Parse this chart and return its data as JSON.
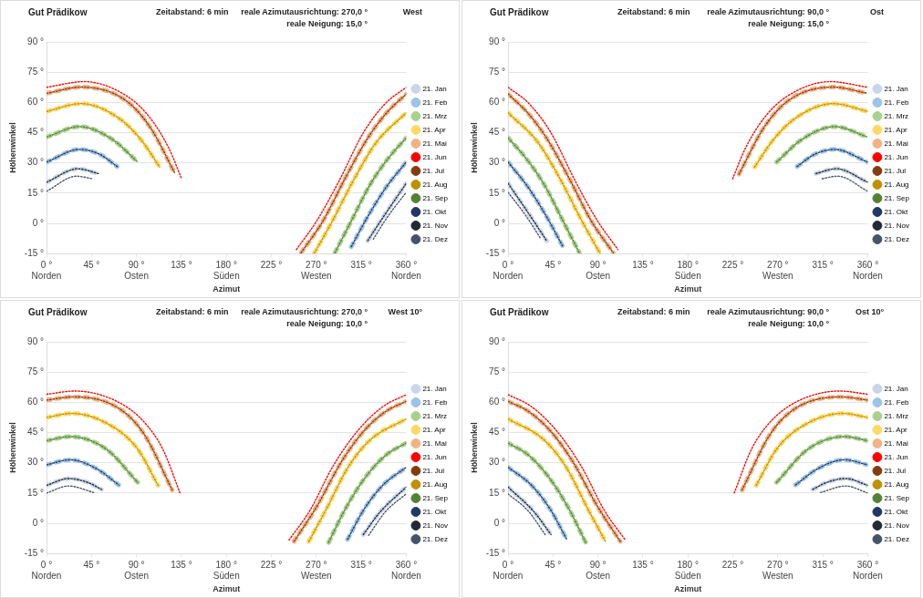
{
  "chart_data": [
    {
      "type": "line",
      "title": "Gut Prädikow",
      "annotations": [
        "Zeitabstand: 6 min",
        "reale Azimutausrichtung: 270,0 °",
        "West",
        "reale Neigung: 15,0 °"
      ],
      "xlabel": "Azimut",
      "ylabel": "Höhenwinkel",
      "xlim": [
        0,
        360
      ],
      "xticks": [
        {
          "value": 0,
          "label": "0 °\nNorden"
        },
        {
          "value": 45,
          "label": "45 °"
        },
        {
          "value": 90,
          "label": "90 °\nOsten"
        },
        {
          "value": 135,
          "label": "135 °"
        },
        {
          "value": 180,
          "label": "180 °\nSüden"
        },
        {
          "value": 225,
          "label": "225 °"
        },
        {
          "value": 270,
          "label": "270 °\nWesten"
        },
        {
          "value": 315,
          "label": "315 °"
        },
        {
          "value": 360,
          "label": "360 °\nNorden"
        }
      ],
      "ylim": [
        -15,
        90
      ],
      "yticks": [
        {
          "value": -15,
          "label": "-15 °"
        },
        {
          "value": 0,
          "label": "0 °"
        },
        {
          "value": 15,
          "label": "15 °"
        },
        {
          "value": 30,
          "label": "30 °"
        },
        {
          "value": 45,
          "label": "45 °"
        },
        {
          "value": 60,
          "label": "60 °"
        },
        {
          "value": 75,
          "label": "75 °"
        },
        {
          "value": 90,
          "label": "90 °"
        }
      ],
      "grid": "y",
      "legend": "right",
      "line_style": "dotted",
      "series": [
        {
          "name": "21. Jan",
          "color": "#c9d6ea",
          "x": [
            0,
            31.4,
            51.9,
            180,
            321.4,
            336.4,
            360
          ],
          "values": [
            20.4,
            27.1,
            24.7,
            null,
            -8.6,
            2.7,
            19.9
          ]
        },
        {
          "name": "21. Feb",
          "color": "#9dc3e6",
          "x": [
            0,
            33,
            53.4,
            70.7,
            180,
            305,
            320.7,
            339.6,
            360
          ],
          "values": [
            30.4,
            36.7,
            34.2,
            28.2,
            null,
            -11.6,
            2.7,
            17.7,
            30.4
          ]
        },
        {
          "name": "21. Mrz",
          "color": "#a9d18e",
          "x": [
            0,
            33,
            66,
            91.2,
            180,
            288.6,
            305,
            323.8,
            342.7,
            360
          ],
          "values": [
            42.8,
            48,
            41.6,
            30.4,
            null,
            -14.6,
            1.2,
            19.2,
            32.7,
            42.4
          ]
        },
        {
          "name": "21. Apr",
          "color": "#ffd966",
          "x": [
            0,
            34.6,
            72.3,
            94.3,
            113.2,
            180,
            267.9,
            286.1,
            308.1,
            330.1,
            360
          ],
          "values": [
            55.5,
            59.4,
            52.2,
            41.6,
            28,
            null,
            -14.9,
            1.2,
            22.2,
            40.2,
            54.9
          ]
        },
        {
          "name": "21. Mai",
          "color": "#f4b183",
          "x": [
            0,
            34.6,
            78.6,
            103.8,
            128.9,
            180,
            254.7,
            276.7,
            298.7,
            320.7,
            339.6,
            360
          ],
          "values": [
            64.5,
            67.6,
            61.2,
            47.6,
            24.4,
            null,
            -14.6,
            1.2,
            22.2,
            41.7,
            54.4,
            64.2
          ]
        },
        {
          "name": "21. Jun",
          "color": "#ff0000",
          "x": [
            0,
            37.7,
            81.7,
            103.8,
            122.6,
            135.2,
            180,
            250,
            270.4,
            292.4,
            317.6,
            339.6,
            360
          ],
          "values": [
            67.5,
            70.3,
            62.7,
            52.2,
            37.1,
            22.1,
            null,
            -13,
            1.2,
            20.7,
            45.4,
            59.7,
            67.5
          ]
        },
        {
          "name": "21. Jul",
          "color": "#843c0c",
          "x": [
            0,
            34.6,
            78.6,
            103.8,
            128.9,
            180,
            254.7,
            276.7,
            298.7,
            320.7,
            339.6,
            360
          ],
          "values": [
            64.5,
            67.6,
            61.2,
            47.6,
            24.4,
            null,
            -14.6,
            1.2,
            22.2,
            41.7,
            54.4,
            64.2
          ]
        },
        {
          "name": "21. Aug",
          "color": "#bf9000",
          "x": [
            0,
            34.6,
            72.3,
            94.3,
            113.2,
            180,
            267.9,
            286.1,
            308.1,
            330.1,
            360
          ],
          "values": [
            55.5,
            59.4,
            52.2,
            41.6,
            28,
            null,
            -14.9,
            1.2,
            22.2,
            40.2,
            54.9
          ]
        },
        {
          "name": "21. Sep",
          "color": "#548235",
          "x": [
            0,
            33,
            66,
            91.2,
            180,
            288.6,
            305,
            323.8,
            342.7,
            360
          ],
          "values": [
            42.8,
            48,
            41.6,
            30.4,
            null,
            -14.6,
            1.2,
            19.2,
            32.7,
            42.4
          ]
        },
        {
          "name": "21. Okt",
          "color": "#1f3864",
          "x": [
            0,
            33,
            53.4,
            70.7,
            180,
            305,
            320.7,
            339.6,
            360
          ],
          "values": [
            30.4,
            36.7,
            34.2,
            28.2,
            null,
            -11.6,
            2.7,
            17.7,
            30.4
          ]
        },
        {
          "name": "21. Nov",
          "color": "#222a35",
          "x": [
            0,
            31.4,
            51.9,
            180,
            321.4,
            336.4,
            360
          ],
          "values": [
            20.4,
            27.1,
            24.7,
            null,
            -8.6,
            2.7,
            19.9
          ]
        },
        {
          "name": "21. Dez",
          "color": "#44546a",
          "x": [
            0,
            29.9,
            45.6,
            180,
            327,
            342.7,
            360
          ],
          "values": [
            15.9,
            23.4,
            22.2,
            null,
            -7.8,
            4.2,
            15.4
          ]
        }
      ]
    },
    {
      "type": "line",
      "title": "Gut Prädikow",
      "annotations": [
        "Zeitabstand: 6 min",
        "reale Azimutausrichtung: 90,0 °",
        "Ost",
        "reale Neigung: 15,0 °"
      ],
      "xlabel": "Azimut",
      "ylabel": "Höhenwinkel",
      "xlim": [
        0,
        360
      ],
      "xticks": [
        {
          "value": 0,
          "label": "0 °\nNorden"
        },
        {
          "value": 45,
          "label": "45 °"
        },
        {
          "value": 90,
          "label": "90 °\nOsten"
        },
        {
          "value": 135,
          "label": "135 °"
        },
        {
          "value": 180,
          "label": "180 °\nSüden"
        },
        {
          "value": 225,
          "label": "225 °"
        },
        {
          "value": 270,
          "label": "270 °\nWesten"
        },
        {
          "value": 315,
          "label": "315 °"
        },
        {
          "value": 360,
          "label": "360 °\nNorden"
        }
      ],
      "ylim": [
        -15,
        90
      ],
      "yticks": [
        {
          "value": -15,
          "label": "-15 °"
        },
        {
          "value": 0,
          "label": "0 °"
        },
        {
          "value": 15,
          "label": "15 °"
        },
        {
          "value": 30,
          "label": "30 °"
        },
        {
          "value": 45,
          "label": "45 °"
        },
        {
          "value": 60,
          "label": "60 °"
        },
        {
          "value": 75,
          "label": "75 °"
        },
        {
          "value": 90,
          "label": "90 °"
        }
      ],
      "grid": "y",
      "legend": "right",
      "line_style": "dotted",
      "series": [
        {
          "name": "21. Jan",
          "color": "#c9d6ea",
          "x": [
            0,
            23.6,
            38.6,
            180,
            308.1,
            328.6,
            360
          ],
          "values": [
            19.9,
            2.7,
            -8.6,
            null,
            24.7,
            27.1,
            20.4
          ]
        },
        {
          "name": "21. Feb",
          "color": "#9dc3e6",
          "x": [
            0,
            20.4,
            39.3,
            55,
            180,
            289.3,
            306.6,
            327,
            360
          ],
          "values": [
            30.4,
            17.7,
            2.7,
            -11.6,
            null,
            28.2,
            34.2,
            36.7,
            30.4
          ]
        },
        {
          "name": "21. Mrz",
          "color": "#a9d18e",
          "x": [
            0,
            17.3,
            36.2,
            55,
            71.4,
            180,
            268.8,
            294,
            327,
            360
          ],
          "values": [
            42.4,
            32.7,
            19.2,
            1.2,
            -14.6,
            null,
            30.4,
            41.6,
            48,
            42.8
          ]
        },
        {
          "name": "21. Apr",
          "color": "#ffd966",
          "x": [
            0,
            29.9,
            51.9,
            73.9,
            92.1,
            180,
            246.8,
            265.7,
            287.7,
            325.4,
            360
          ],
          "values": [
            54.9,
            40.2,
            22.2,
            1.2,
            -14.9,
            null,
            28,
            41.6,
            52.2,
            59.4,
            55.5
          ]
        },
        {
          "name": "21. Mai",
          "color": "#f4b183",
          "x": [
            0,
            20.4,
            39.3,
            61.3,
            83.3,
            105.3,
            180,
            231.1,
            256.2,
            281.4,
            325.4,
            360
          ],
          "values": [
            64.2,
            54.4,
            41.7,
            22.2,
            1.2,
            -14.6,
            null,
            24.4,
            47.6,
            61.2,
            67.6,
            64.5
          ]
        },
        {
          "name": "21. Jun",
          "color": "#ff0000",
          "x": [
            0,
            20.4,
            42.4,
            67.6,
            89.6,
            110,
            180,
            224.8,
            237.4,
            256.2,
            278.3,
            322.3,
            360
          ],
          "values": [
            67.5,
            59.7,
            45.4,
            20.7,
            1.2,
            -13,
            null,
            22.1,
            37.1,
            52.2,
            62.7,
            70.3,
            67.5
          ]
        },
        {
          "name": "21. Jul",
          "color": "#843c0c",
          "x": [
            0,
            20.4,
            39.3,
            61.3,
            83.3,
            105.3,
            180,
            231.1,
            256.2,
            281.4,
            325.4,
            360
          ],
          "values": [
            64.2,
            54.4,
            41.7,
            22.2,
            1.2,
            -14.6,
            null,
            24.4,
            47.6,
            61.2,
            67.6,
            64.5
          ]
        },
        {
          "name": "21. Aug",
          "color": "#bf9000",
          "x": [
            0,
            29.9,
            51.9,
            73.9,
            92.1,
            180,
            246.8,
            265.7,
            287.7,
            325.4,
            360
          ],
          "values": [
            54.9,
            40.2,
            22.2,
            1.2,
            -14.9,
            null,
            28,
            41.6,
            52.2,
            59.4,
            55.5
          ]
        },
        {
          "name": "21. Sep",
          "color": "#548235",
          "x": [
            0,
            17.3,
            36.2,
            55,
            71.4,
            180,
            268.8,
            294,
            327,
            360
          ],
          "values": [
            42.4,
            32.7,
            19.2,
            1.2,
            -14.6,
            null,
            30.4,
            41.6,
            48,
            42.8
          ]
        },
        {
          "name": "21. Okt",
          "color": "#1f3864",
          "x": [
            0,
            20.4,
            39.3,
            55,
            180,
            289.3,
            306.6,
            327,
            360
          ],
          "values": [
            30.4,
            17.7,
            2.7,
            -11.6,
            null,
            28.2,
            34.2,
            36.7,
            30.4
          ]
        },
        {
          "name": "21. Nov",
          "color": "#222a35",
          "x": [
            0,
            23.6,
            38.6,
            180,
            308.1,
            328.6,
            360
          ],
          "values": [
            19.9,
            2.7,
            -8.6,
            null,
            24.7,
            27.1,
            20.4
          ]
        },
        {
          "name": "21. Dez",
          "color": "#44546a",
          "x": [
            0,
            17.3,
            33,
            180,
            314.4,
            330.1,
            360
          ],
          "values": [
            15.4,
            4.2,
            -7.8,
            null,
            22.2,
            23.4,
            15.9
          ]
        }
      ]
    },
    {
      "type": "line",
      "title": "Gut Prädikow",
      "annotations": [
        "Zeitabstand: 6 min",
        "reale Azimutausrichtung: 270,0 °",
        "West 10°",
        "reale Neigung: 10,0 °"
      ],
      "xlabel": "Azimut",
      "ylabel": "Höhenwinkel",
      "xlim": [
        0,
        360
      ],
      "xticks": [
        {
          "value": 0,
          "label": "0 °\nNorden"
        },
        {
          "value": 45,
          "label": "45 °"
        },
        {
          "value": 90,
          "label": "90 °\nOsten"
        },
        {
          "value": 135,
          "label": "135 °"
        },
        {
          "value": 180,
          "label": "180 °\nSüden"
        },
        {
          "value": 225,
          "label": "225 °"
        },
        {
          "value": 270,
          "label": "270 °\nWesten"
        },
        {
          "value": 315,
          "label": "315 °"
        },
        {
          "value": 360,
          "label": "360 °\nNorden"
        }
      ],
      "ylim": [
        -15,
        90
      ],
      "yticks": [
        {
          "value": -15,
          "label": "-15 °"
        },
        {
          "value": 0,
          "label": "0 °"
        },
        {
          "value": 15,
          "label": "15 °"
        },
        {
          "value": 30,
          "label": "30 °"
        },
        {
          "value": 45,
          "label": "45 °"
        },
        {
          "value": 60,
          "label": "60 °"
        },
        {
          "value": 75,
          "label": "75 °"
        },
        {
          "value": 90,
          "label": "90 °"
        }
      ],
      "grid": "y",
      "legend": "right",
      "line_style": "dotted",
      "series": [
        {
          "name": "21. Jan",
          "color": "#c9d6ea",
          "x": [
            0,
            22,
            40.9,
            55,
            180,
            317,
            333.3,
            360
          ],
          "values": [
            18.8,
            22.2,
            20.3,
            16.8,
            null,
            -5.6,
            5.3,
            18
          ]
        },
        {
          "name": "21. Feb",
          "color": "#9dc3e6",
          "x": [
            0,
            23.6,
            50.3,
            72.3,
            180,
            301.2,
            317.6,
            336.4,
            360
          ],
          "values": [
            29,
            31.5,
            27,
            19,
            null,
            -8,
            6.8,
            18.8,
            27.8
          ]
        },
        {
          "name": "21. Mrz",
          "color": "#a9d18e",
          "x": [
            0,
            23.6,
            59.7,
            91.2,
            180,
            282.3,
            298.7,
            317.6,
            339.6,
            360
          ],
          "values": [
            41,
            43,
            36.8,
            20.3,
            null,
            -9.5,
            6.8,
            21.8,
            33.8,
            39.8
          ]
        },
        {
          "name": "21. Apr",
          "color": "#ffd966",
          "x": [
            0,
            25.2,
            66,
            91.2,
            111.6,
            180,
            262.5,
            279.8,
            301.8,
            323.8,
            360
          ],
          "values": [
            52.5,
            54.5,
            48,
            36.8,
            18.8,
            null,
            -9,
            6.8,
            27.8,
            41.3,
            51.8
          ]
        },
        {
          "name": "21. Mai",
          "color": "#f4b183",
          "x": [
            0,
            26.7,
            72.3,
            97.5,
            125.8,
            180,
            247.7,
            270.4,
            295.5,
            317.6,
            339.6,
            360
          ],
          "values": [
            61.1,
            62.7,
            57,
            44.3,
            16.5,
            null,
            -9,
            8.3,
            30.8,
            45.8,
            55.5,
            60.5
          ]
        },
        {
          "name": "21. Jun",
          "color": "#ff0000",
          "x": [
            0,
            28.3,
            72.3,
            97.5,
            116.3,
            133.6,
            180,
            242.7,
            264.1,
            286.1,
            311.3,
            336.4,
            360
          ],
          "values": [
            64,
            65.6,
            60,
            50.3,
            36.8,
            15,
            null,
            -8.3,
            6.8,
            27.8,
            45.8,
            57.8,
            63.8
          ]
        },
        {
          "name": "21. Jul",
          "color": "#843c0c",
          "x": [
            0,
            26.7,
            72.3,
            97.5,
            125.8,
            180,
            247.7,
            270.4,
            295.5,
            317.6,
            339.6,
            360
          ],
          "values": [
            61.1,
            62.7,
            57,
            44.3,
            16.5,
            null,
            -9,
            8.3,
            30.8,
            45.8,
            55.5,
            60.5
          ]
        },
        {
          "name": "21. Aug",
          "color": "#bf9000",
          "x": [
            0,
            25.2,
            66,
            91.2,
            111.6,
            180,
            262.5,
            279.8,
            301.8,
            323.8,
            360
          ],
          "values": [
            52.5,
            54.5,
            48,
            36.8,
            18.8,
            null,
            -9,
            6.8,
            27.8,
            41.3,
            51.8
          ]
        },
        {
          "name": "21. Sep",
          "color": "#548235",
          "x": [
            0,
            23.6,
            59.7,
            91.2,
            180,
            282.3,
            298.7,
            317.6,
            339.6,
            360
          ],
          "values": [
            41,
            43,
            36.8,
            20.3,
            null,
            -9.5,
            6.8,
            21.8,
            33.8,
            39.8
          ]
        },
        {
          "name": "21. Okt",
          "color": "#1f3864",
          "x": [
            0,
            23.6,
            50.3,
            72.3,
            180,
            301.2,
            317.6,
            336.4,
            360
          ],
          "values": [
            29,
            31.5,
            27,
            19,
            null,
            -8,
            6.8,
            18.8,
            27.8
          ]
        },
        {
          "name": "21. Nov",
          "color": "#222a35",
          "x": [
            0,
            22,
            40.9,
            55,
            180,
            317,
            333.3,
            360
          ],
          "values": [
            18.8,
            22.2,
            20.3,
            16.8,
            null,
            -5.6,
            5.3,
            18
          ]
        },
        {
          "name": "21. Dez",
          "color": "#44546a",
          "x": [
            0,
            22,
            47.2,
            180,
            322.3,
            339.6,
            360
          ],
          "values": [
            15,
            18.5,
            15.3,
            null,
            -6,
            6,
            14.6
          ]
        }
      ]
    },
    {
      "type": "line",
      "title": "Gut Prädikow",
      "annotations": [
        "Zeitabstand: 6 min",
        "reale Azimutausrichtung: 90,0 °",
        "Ost 10°",
        "reale Neigung: 10,0 °"
      ],
      "xlabel": "Azimut",
      "ylabel": "Höhenwinkel",
      "xlim": [
        0,
        360
      ],
      "xticks": [
        {
          "value": 0,
          "label": "0 °\nNorden"
        },
        {
          "value": 45,
          "label": "45 °"
        },
        {
          "value": 90,
          "label": "90 °\nOsten"
        },
        {
          "value": 135,
          "label": "135 °"
        },
        {
          "value": 180,
          "label": "180 °\nSüden"
        },
        {
          "value": 225,
          "label": "225 °"
        },
        {
          "value": 270,
          "label": "270 °\nWesten"
        },
        {
          "value": 315,
          "label": "315 °"
        },
        {
          "value": 360,
          "label": "360 °\nNorden"
        }
      ],
      "ylim": [
        -15,
        90
      ],
      "yticks": [
        {
          "value": -15,
          "label": "-15 °"
        },
        {
          "value": 0,
          "label": "0 °"
        },
        {
          "value": 15,
          "label": "15 °"
        },
        {
          "value": 30,
          "label": "30 °"
        },
        {
          "value": 45,
          "label": "45 °"
        },
        {
          "value": 60,
          "label": "60 °"
        },
        {
          "value": 75,
          "label": "75 °"
        },
        {
          "value": 90,
          "label": "90 °"
        }
      ],
      "grid": "y",
      "legend": "right",
      "line_style": "dotted",
      "series": [
        {
          "name": "21. Jan",
          "color": "#c9d6ea",
          "x": [
            0,
            26.7,
            43,
            180,
            305,
            319.1,
            338,
            360
          ],
          "values": [
            18,
            5.3,
            -5.6,
            null,
            16.8,
            20.3,
            22.2,
            18.8
          ]
        },
        {
          "name": "21. Feb",
          "color": "#9dc3e6",
          "x": [
            0,
            23.6,
            42.4,
            58.8,
            180,
            287.7,
            309.7,
            336.4,
            360
          ],
          "values": [
            27.8,
            18.8,
            6.8,
            -8,
            null,
            19,
            27,
            31.5,
            29
          ]
        },
        {
          "name": "21. Mrz",
          "color": "#a9d18e",
          "x": [
            0,
            20.4,
            42.4,
            61.3,
            77.7,
            180,
            268.8,
            300.3,
            336.4,
            360
          ],
          "values": [
            39.8,
            33.8,
            21.8,
            6.8,
            -9.5,
            null,
            20.3,
            36.8,
            43,
            41
          ]
        },
        {
          "name": "21. Apr",
          "color": "#ffd966",
          "x": [
            0,
            36.2,
            58.2,
            80.2,
            97.5,
            180,
            248.4,
            268.8,
            294,
            334.8,
            360
          ],
          "values": [
            51.8,
            41.3,
            27.8,
            6.8,
            -9,
            null,
            18.8,
            36.8,
            48,
            54.5,
            52.5
          ]
        },
        {
          "name": "21. Mai",
          "color": "#f4b183",
          "x": [
            0,
            20.4,
            42.4,
            64.5,
            89.6,
            112.3,
            180,
            234.2,
            262.5,
            287.7,
            333.3,
            360
          ],
          "values": [
            60.5,
            55.5,
            45.8,
            30.8,
            8.3,
            -9,
            null,
            16.5,
            44.3,
            57,
            62.7,
            61.1
          ]
        },
        {
          "name": "21. Jun",
          "color": "#ff0000",
          "x": [
            0,
            23.6,
            48.7,
            73.9,
            95.9,
            117.3,
            180,
            226.4,
            243.7,
            262.5,
            287.7,
            331.7,
            360
          ],
          "values": [
            63.8,
            57.8,
            45.8,
            27.8,
            6.8,
            -8.3,
            null,
            15,
            36.8,
            50.3,
            60,
            65.6,
            64
          ]
        },
        {
          "name": "21. Jul",
          "color": "#843c0c",
          "x": [
            0,
            20.4,
            42.4,
            64.5,
            89.6,
            112.3,
            180,
            234.2,
            262.5,
            287.7,
            333.3,
            360
          ],
          "values": [
            60.5,
            55.5,
            45.8,
            30.8,
            8.3,
            -9,
            null,
            16.5,
            44.3,
            57,
            62.7,
            61.1
          ]
        },
        {
          "name": "21. Aug",
          "color": "#bf9000",
          "x": [
            0,
            36.2,
            58.2,
            80.2,
            97.5,
            180,
            248.4,
            268.8,
            294,
            334.8,
            360
          ],
          "values": [
            51.8,
            41.3,
            27.8,
            6.8,
            -9,
            null,
            18.8,
            36.8,
            48,
            54.5,
            52.5
          ]
        },
        {
          "name": "21. Sep",
          "color": "#548235",
          "x": [
            0,
            20.4,
            42.4,
            61.3,
            77.7,
            180,
            268.8,
            300.3,
            336.4,
            360
          ],
          "values": [
            39.8,
            33.8,
            21.8,
            6.8,
            -9.5,
            null,
            20.3,
            36.8,
            43,
            41
          ]
        },
        {
          "name": "21. Okt",
          "color": "#1f3864",
          "x": [
            0,
            23.6,
            42.4,
            58.8,
            180,
            287.7,
            309.7,
            336.4,
            360
          ],
          "values": [
            27.8,
            18.8,
            6.8,
            -8,
            null,
            19,
            27,
            31.5,
            29
          ]
        },
        {
          "name": "21. Nov",
          "color": "#222a35",
          "x": [
            0,
            26.7,
            43,
            180,
            305,
            319.1,
            338,
            360
          ],
          "values": [
            18,
            5.3,
            -5.6,
            null,
            16.8,
            20.3,
            22.2,
            18.8
          ]
        },
        {
          "name": "21. Dez",
          "color": "#44546a",
          "x": [
            0,
            20.4,
            37.7,
            180,
            312.8,
            338,
            360
          ],
          "values": [
            14.6,
            6,
            -6,
            null,
            15.3,
            18.5,
            15
          ]
        }
      ]
    }
  ]
}
